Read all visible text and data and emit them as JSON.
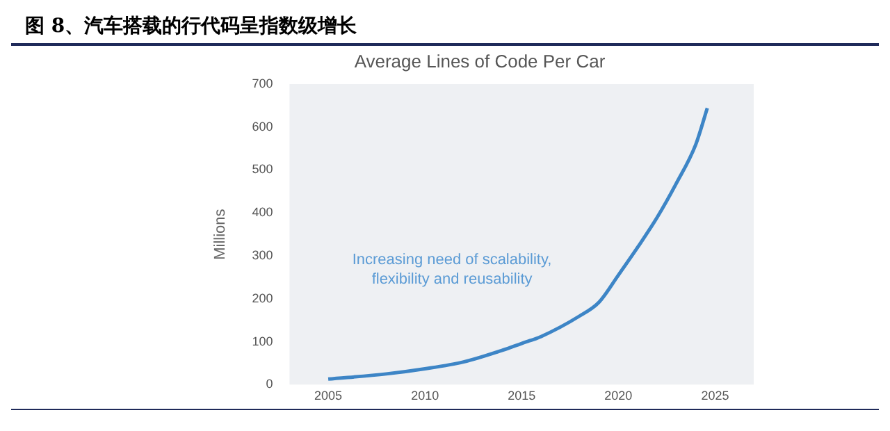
{
  "chart_data": {
    "type": "line",
    "title": "图 8、汽车搭载的行代码呈指数级增长",
    "subtitle": "Average Lines of Code Per Car",
    "ylabel": "Millions",
    "annotations": [
      "Increasing need of scalability, flexibility and reusability"
    ],
    "x": [
      2005,
      2008,
      2010,
      2012,
      2014,
      2015,
      2016,
      2018,
      2019,
      2020,
      2021,
      2022,
      2023,
      2024,
      2024.6
    ],
    "series": [
      {
        "color": "#3d85c6",
        "values": [
          13,
          25,
          37,
          53,
          80,
          96,
          112,
          160,
          192,
          255,
          320,
          389,
          469,
          559,
          644
        ]
      }
    ],
    "xlim": [
      2003,
      2027
    ],
    "xticks": [
      2005,
      2010,
      2015,
      2020,
      2025
    ],
    "ylim": [
      0,
      700
    ],
    "yticks": [
      0,
      100,
      200,
      300,
      400,
      500,
      600,
      700
    ],
    "grid": false,
    "legend": false,
    "marker": "none",
    "line_style": "solid"
  }
}
